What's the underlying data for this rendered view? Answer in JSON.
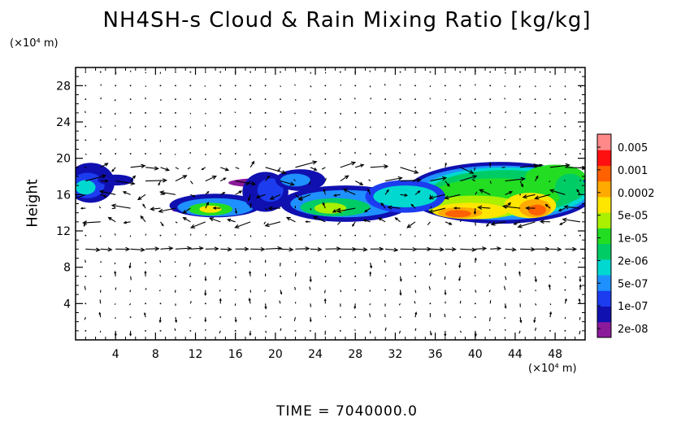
{
  "title": "NH4SH-s Cloud & Rain Mixing Ratio [kg/kg]",
  "y_unit": "(×10⁴ m)",
  "x_unit": "(×10⁴ m)",
  "time_label": "TIME  =  7040000.0",
  "chart_data": {
    "type": "heatmap",
    "title": "NH4SH-s Cloud & Rain Mixing Ratio [kg/kg]",
    "ylabel": "Height",
    "xlabel": "",
    "x_ticks": [
      "4",
      "8",
      "12",
      "16",
      "20",
      "24",
      "28",
      "32",
      "36",
      "40",
      "44",
      "48"
    ],
    "y_ticks": [
      "4",
      "8",
      "12",
      "16",
      "20",
      "24",
      "28"
    ],
    "xlim": [
      0,
      51
    ],
    "ylim": [
      0,
      30
    ],
    "colorbar": {
      "labels": [
        "0.005",
        "0.001",
        "0.0002",
        "5e-05",
        "1e-05",
        "2e-06",
        "5e-07",
        "1e-07",
        "2e-08"
      ],
      "colors": [
        "#8b1a9b",
        "#1010b0",
        "#1c3cf0",
        "#1e90ff",
        "#00d8d0",
        "#00cc66",
        "#22dd22",
        "#aaf000",
        "#ffe600",
        "#ffaa00",
        "#ff6000",
        "#ff1010",
        "#ff8888"
      ]
    },
    "cloud_layer": {
      "base_height": 13,
      "top_height": 19.5,
      "max_value_region_x": [
        36,
        48
      ],
      "max_value_region_height": [
        13,
        16
      ]
    },
    "wind_vectors": "velocity arrows over full domain"
  }
}
